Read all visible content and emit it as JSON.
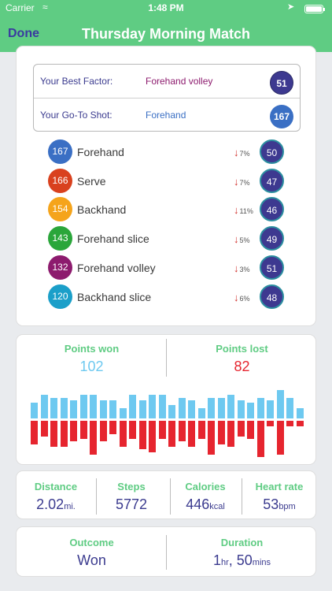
{
  "status_bar": {
    "carrier": "Carrier",
    "time": "1:48 PM"
  },
  "nav": {
    "done_label": "Done",
    "title": "Thursday Morning Match"
  },
  "best": {
    "best_factor_label": "Your Best Factor:",
    "best_factor_value": "Forehand volley",
    "best_factor_score": "51",
    "goto_label": "Your Go-To Shot:",
    "goto_value": "Forehand",
    "goto_count": "167"
  },
  "shots": [
    {
      "count": "167",
      "name": "Forehand",
      "change": "7%",
      "score": "50",
      "color": "#3a6fc4"
    },
    {
      "count": "166",
      "name": "Serve",
      "change": "7%",
      "score": "47",
      "color": "#d9411e"
    },
    {
      "count": "154",
      "name": "Backhand",
      "change": "11%",
      "score": "46",
      "color": "#f5a41b"
    },
    {
      "count": "143",
      "name": "Forehand slice",
      "change": "5%",
      "score": "49",
      "color": "#2aa63a"
    },
    {
      "count": "132",
      "name": "Forehand volley",
      "change": "3%",
      "score": "51",
      "color": "#8d1b6e"
    },
    {
      "count": "120",
      "name": "Backhand slice",
      "change": "6%",
      "score": "48",
      "color": "#1b9fc9"
    }
  ],
  "points": {
    "won_label": "Points won",
    "won_value": "102",
    "lost_label": "Points lost",
    "lost_value": "82"
  },
  "chart_data": {
    "type": "bar",
    "series": [
      {
        "values": [
          6,
          9,
          8,
          8,
          7,
          9,
          9,
          7,
          7,
          4,
          9,
          7,
          9,
          9,
          5,
          8,
          7,
          4,
          8,
          8,
          9,
          7,
          6,
          8,
          7,
          11,
          8,
          4
        ]
      },
      {
        "values": [
          9,
          6,
          10,
          10,
          8,
          7,
          13,
          8,
          5,
          10,
          7,
          11,
          12,
          7,
          10,
          8,
          10,
          7,
          13,
          9,
          10,
          6,
          7,
          14,
          2,
          13,
          2,
          2
        ]
      }
    ]
  },
  "stats": {
    "distance_label": "Distance",
    "distance_value": "2.02",
    "distance_unit": "mi.",
    "steps_label": "Steps",
    "steps_value": "5772",
    "calories_label": "Calories",
    "calories_value": "446",
    "calories_unit": "kcal",
    "heart_label": "Heart rate",
    "heart_value": "53",
    "heart_unit": "bpm"
  },
  "summary": {
    "outcome_label": "Outcome",
    "outcome_value": "Won",
    "duration_label": "Duration",
    "duration_hours": "1",
    "duration_hours_unit": "hr",
    "duration_sep": ", ",
    "duration_mins": "50",
    "duration_mins_unit": "mins"
  },
  "colors": {
    "header": "#5fcc83",
    "won": "#6ec9f0",
    "lost": "#e6252f",
    "score_circle": "#3d3990"
  }
}
